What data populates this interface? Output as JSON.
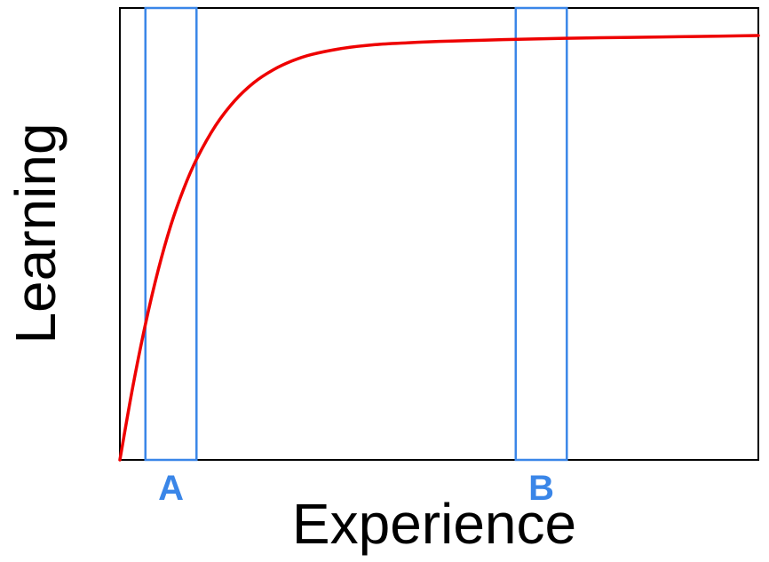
{
  "chart_data": {
    "type": "line",
    "xlabel": "Experience",
    "ylabel": "Learning",
    "xlim": [
      0,
      100
    ],
    "ylim": [
      0,
      100
    ],
    "grid": false,
    "series": [
      {
        "color": "#ee0000",
        "x": [
          0,
          2,
          4,
          6,
          8,
          10,
          12,
          15,
          18,
          21,
          24,
          27,
          30,
          35,
          40,
          45,
          50,
          55,
          60,
          70,
          80,
          90,
          100
        ],
        "y": [
          0,
          16,
          30,
          42,
          52,
          60,
          66.5,
          74,
          79.5,
          83.5,
          86.3,
          88.3,
          89.7,
          91.1,
          91.9,
          92.3,
          92.6,
          92.8,
          93.0,
          93.3,
          93.5,
          93.7,
          93.9
        ]
      }
    ],
    "bands": [
      {
        "label": "A",
        "x_start": 4,
        "x_end": 12,
        "color": "#3a86e8"
      },
      {
        "label": "B",
        "x_start": 62,
        "x_end": 70,
        "color": "#3a86e8"
      }
    ]
  }
}
